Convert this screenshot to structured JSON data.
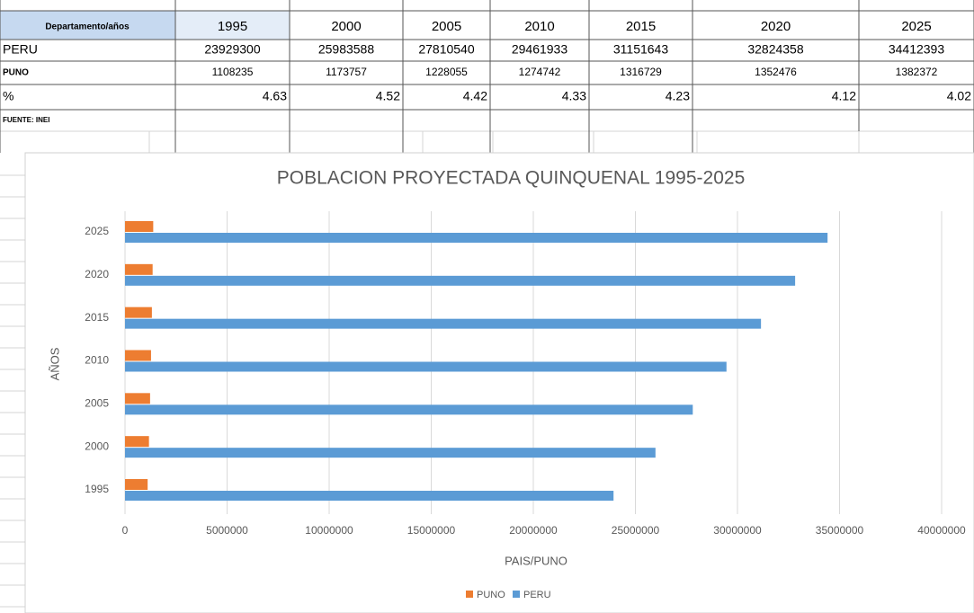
{
  "table": {
    "header": [
      "Departamento/años",
      "1995",
      "2000",
      "2005",
      "2010",
      "2015",
      "2020",
      "2025"
    ],
    "rows": [
      [
        "PERU",
        23929300,
        25983588,
        27810540,
        29461933,
        31151643,
        32824358,
        34412393
      ],
      [
        "PUNO",
        1108235,
        1173757,
        1228055,
        1274742,
        1316729,
        1352476,
        1382372
      ],
      [
        "%",
        4.63,
        4.52,
        4.42,
        4.33,
        4.23,
        4.12,
        4.02
      ]
    ],
    "source": "FUENTE: INEI"
  },
  "chart_data": {
    "type": "hbar",
    "title": "POBLACION PROYECTADA QUINQUENAL 1995-2025",
    "x_label": "PAIS/PUNO",
    "y_label": "AÑOS",
    "categories": [
      "1995",
      "2000",
      "2005",
      "2010",
      "2015",
      "2020",
      "2025"
    ],
    "series": [
      {
        "name": "PUNO",
        "color": "#ed7d31",
        "values": [
          1108235,
          1173757,
          1228055,
          1274742,
          1316729,
          1352476,
          1382372
        ]
      },
      {
        "name": "PERU",
        "color": "#5b9bd5",
        "values": [
          23929300,
          25983588,
          27810540,
          29461933,
          31151643,
          32824358,
          34412393
        ]
      }
    ],
    "xlim": [
      0,
      40000000
    ],
    "xticks": [
      0,
      5000000,
      10000000,
      15000000,
      20000000,
      25000000,
      30000000,
      35000000,
      40000000
    ],
    "grid": true,
    "legend": "bottom"
  }
}
